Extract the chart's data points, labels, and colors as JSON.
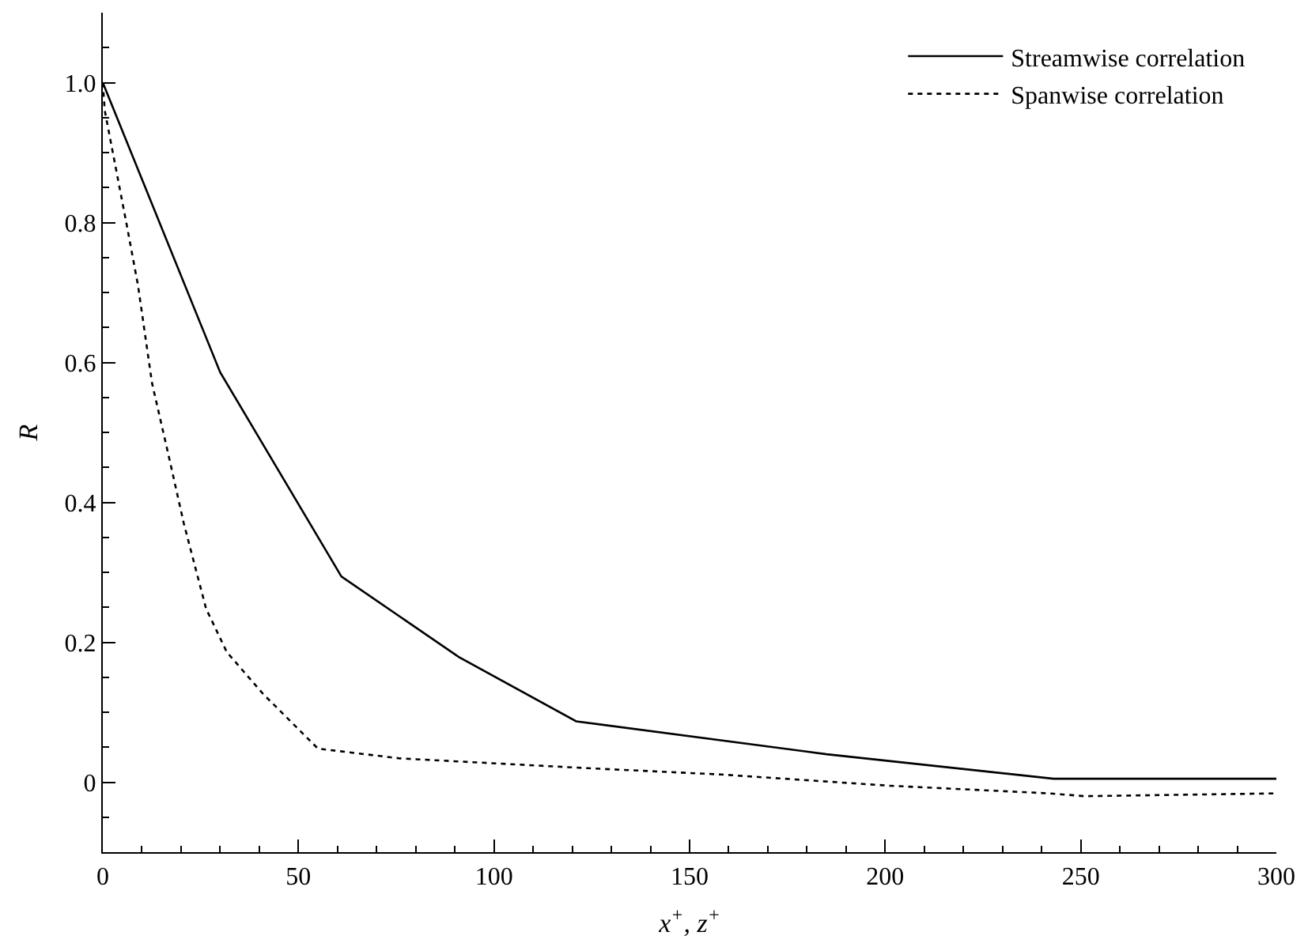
{
  "chart_data": {
    "type": "line",
    "xlabel": "x$^{+}$, z$^{+}$",
    "ylabel": "R",
    "xlim": [
      0,
      300
    ],
    "xticks": [
      0,
      50,
      100,
      150,
      200,
      250,
      300
    ],
    "ylim": [
      -0.1,
      1.1
    ],
    "yticks": [
      0,
      0.2,
      0.4,
      0.6,
      0.8,
      {
        "value": 1,
        "label": "1.0"
      }
    ],
    "legend": "top right",
    "marker": "none",
    "series": [
      {
        "name": "Streamwise correlation",
        "color": "#000000",
        "line_style": "solid",
        "x": [
          0,
          30,
          61,
          91,
          121,
          185,
          243,
          300
        ],
        "values": [
          1.0,
          0.586,
          0.294,
          0.179,
          0.087,
          0.04,
          0.005,
          0.005
        ]
      },
      {
        "name": "Spanwise correlation",
        "color": "#000000",
        "line_style": "dotted",
        "x": [
          0,
          0.5,
          6,
          9,
          12.6,
          16.7,
          20.7,
          26.4,
          31.7,
          41,
          55,
          76,
          124,
          158,
          201,
          242,
          251,
          300
        ],
        "values": [
          1.0,
          0.96,
          0.8,
          0.71,
          0.57,
          0.47,
          0.37,
          0.248,
          0.186,
          0.126,
          0.048,
          0.034,
          0.02,
          0.011,
          -0.005,
          -0.016,
          -0.02,
          -0.016
        ]
      }
    ]
  }
}
